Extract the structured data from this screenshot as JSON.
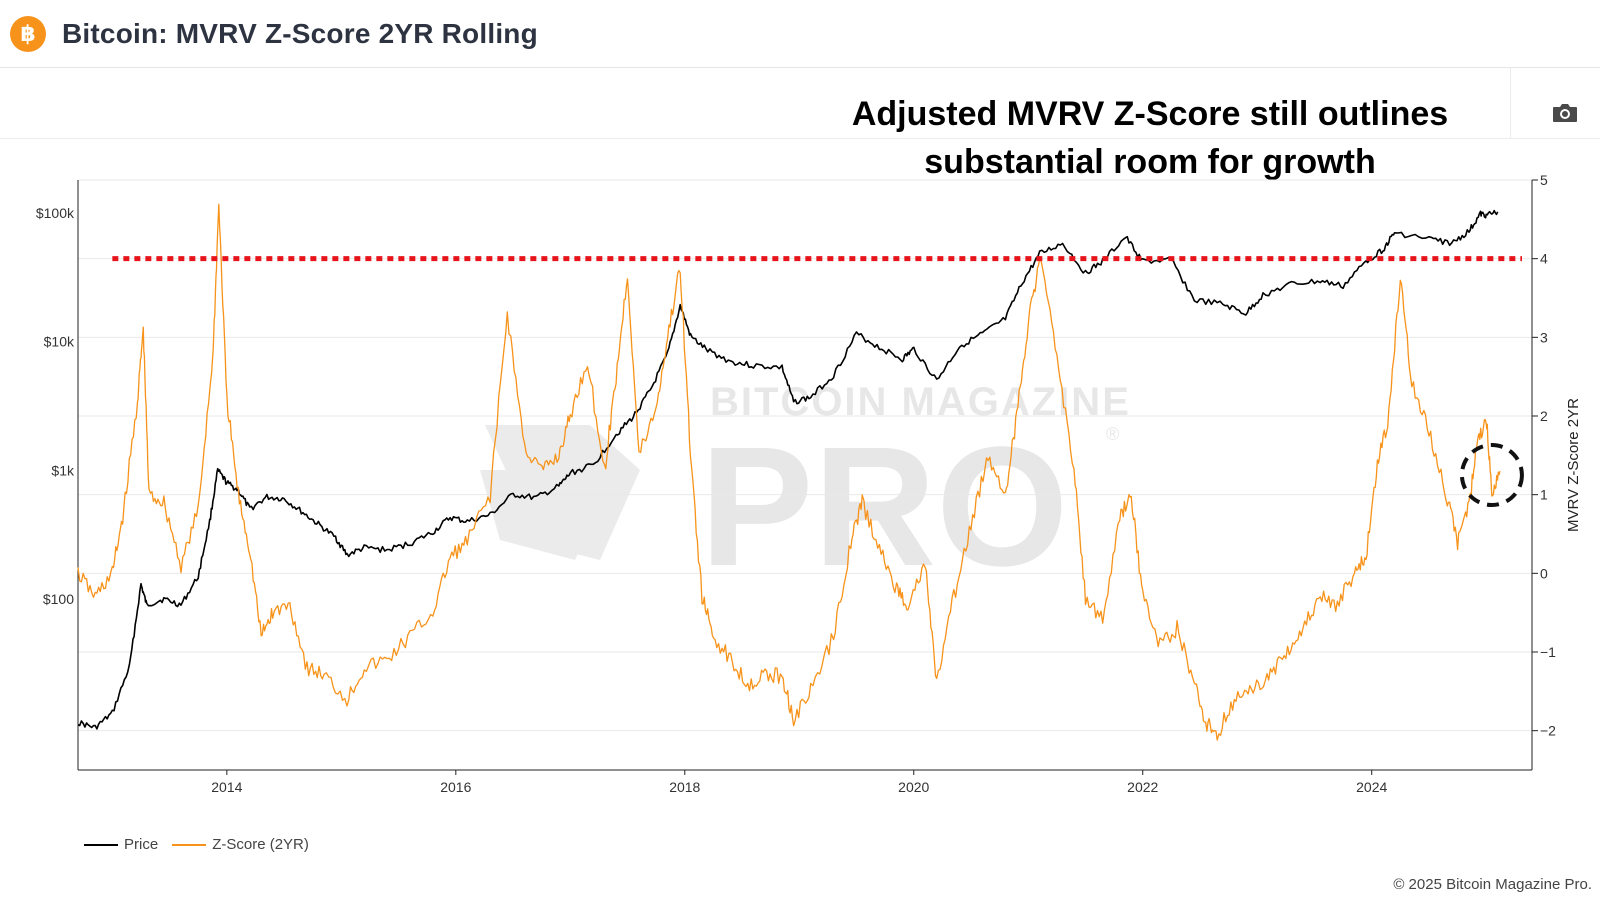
{
  "header": {
    "logo_glyph": "฿",
    "title": "Bitcoin: MVRV Z-Score 2YR Rolling"
  },
  "toolbar": {
    "camera_icon": "camera-icon"
  },
  "annotation": {
    "line1": "Adjusted MVRV Z-Score still outlines",
    "line2": "substantial room for growth"
  },
  "watermark": {
    "line1": "BITCOIN MAGAZINE",
    "line2": "PRO",
    "mark": "®"
  },
  "footer": {
    "copyright": "© 2025 Bitcoin Magazine Pro."
  },
  "colors": {
    "price": "#000000",
    "zscore": "#f7931a",
    "threshold": "#e8141b",
    "accent": "#f7931a"
  },
  "chart_data": {
    "type": "line",
    "title": "Bitcoin: MVRV Z-Score 2YR Rolling",
    "x_range": [
      2012.7,
      2025.4
    ],
    "x_ticks": [
      2014,
      2016,
      2018,
      2020,
      2022,
      2024
    ],
    "x_tick_labels": [
      "2014",
      "2016",
      "2018",
      "2020",
      "2022",
      "2024"
    ],
    "y_left": {
      "scale": "log",
      "range": [
        4.7,
        180000
      ],
      "ticks": [
        100,
        1000,
        10000,
        100000
      ],
      "tick_labels": [
        "$100",
        "$1k",
        "$10k",
        "$100k"
      ]
    },
    "y_right": {
      "label": "MVRV Z-Score 2YR",
      "range": [
        -2.5,
        5
      ],
      "ticks": [
        -2,
        -1,
        0,
        1,
        2,
        3,
        4,
        5
      ],
      "tick_labels": [
        "−2",
        "−1",
        "0",
        "1",
        "2",
        "3",
        "4",
        "5"
      ]
    },
    "threshold_line": {
      "axis": "right",
      "value": 4,
      "style": "dotted"
    },
    "highlight_circle": {
      "x": 2025.05,
      "y_right": 1.25,
      "style": "dashed"
    },
    "legend": [
      "Price",
      "Z-Score (2YR)"
    ],
    "series": [
      {
        "name": "Price",
        "axis": "left",
        "points": [
          [
            2012.7,
            11
          ],
          [
            2012.85,
            10
          ],
          [
            2013.0,
            13
          ],
          [
            2013.15,
            30
          ],
          [
            2013.25,
            130
          ],
          [
            2013.3,
            90
          ],
          [
            2013.45,
            100
          ],
          [
            2013.6,
            90
          ],
          [
            2013.75,
            150
          ],
          [
            2013.85,
            400
          ],
          [
            2013.92,
            1000
          ],
          [
            2014.0,
            800
          ],
          [
            2014.1,
            700
          ],
          [
            2014.2,
            500
          ],
          [
            2014.35,
            620
          ],
          [
            2014.5,
            600
          ],
          [
            2014.65,
            480
          ],
          [
            2014.8,
            380
          ],
          [
            2014.95,
            300
          ],
          [
            2015.05,
            220
          ],
          [
            2015.2,
            250
          ],
          [
            2015.4,
            240
          ],
          [
            2015.6,
            270
          ],
          [
            2015.8,
            330
          ],
          [
            2015.95,
            430
          ],
          [
            2016.1,
            400
          ],
          [
            2016.3,
            450
          ],
          [
            2016.5,
            650
          ],
          [
            2016.7,
            610
          ],
          [
            2016.9,
            750
          ],
          [
            2017.0,
            950
          ],
          [
            2017.2,
            1100
          ],
          [
            2017.4,
            1900
          ],
          [
            2017.55,
            2600
          ],
          [
            2017.7,
            4200
          ],
          [
            2017.85,
            8000
          ],
          [
            2017.96,
            19000
          ],
          [
            2018.05,
            11000
          ],
          [
            2018.2,
            8500
          ],
          [
            2018.4,
            7000
          ],
          [
            2018.6,
            6500
          ],
          [
            2018.85,
            6300
          ],
          [
            2018.95,
            3400
          ],
          [
            2019.1,
            3700
          ],
          [
            2019.3,
            5500
          ],
          [
            2019.5,
            11500
          ],
          [
            2019.7,
            9000
          ],
          [
            2019.9,
            7300
          ],
          [
            2020.0,
            8800
          ],
          [
            2020.2,
            5000
          ],
          [
            2020.4,
            9200
          ],
          [
            2020.6,
            11500
          ],
          [
            2020.8,
            15000
          ],
          [
            2020.95,
            29000
          ],
          [
            2021.1,
            48000
          ],
          [
            2021.3,
            58000
          ],
          [
            2021.5,
            34000
          ],
          [
            2021.65,
            42000
          ],
          [
            2021.85,
            65000
          ],
          [
            2022.0,
            42000
          ],
          [
            2022.25,
            43000
          ],
          [
            2022.45,
            21000
          ],
          [
            2022.7,
            19500
          ],
          [
            2022.9,
            16500
          ],
          [
            2023.05,
            23000
          ],
          [
            2023.3,
            28000
          ],
          [
            2023.55,
            29500
          ],
          [
            2023.75,
            27000
          ],
          [
            2023.95,
            42000
          ],
          [
            2024.1,
            52000
          ],
          [
            2024.2,
            70000
          ],
          [
            2024.5,
            63000
          ],
          [
            2024.7,
            58000
          ],
          [
            2024.85,
            72000
          ],
          [
            2024.95,
            98000
          ],
          [
            2025.0,
            96000
          ],
          [
            2025.1,
            102000
          ]
        ]
      },
      {
        "name": "Z-Score (2YR)",
        "axis": "right",
        "points": [
          [
            2012.7,
            0.0
          ],
          [
            2012.85,
            -0.3
          ],
          [
            2013.0,
            0.0
          ],
          [
            2013.1,
            0.8
          ],
          [
            2013.22,
            2.2
          ],
          [
            2013.27,
            3.1
          ],
          [
            2013.32,
            1.0
          ],
          [
            2013.45,
            0.9
          ],
          [
            2013.6,
            0.1
          ],
          [
            2013.75,
            0.8
          ],
          [
            2013.88,
            2.8
          ],
          [
            2013.93,
            4.7
          ],
          [
            2014.0,
            2.2
          ],
          [
            2014.1,
            1.0
          ],
          [
            2014.2,
            0.3
          ],
          [
            2014.3,
            -0.8
          ],
          [
            2014.4,
            -0.5
          ],
          [
            2014.55,
            -0.4
          ],
          [
            2014.7,
            -1.2
          ],
          [
            2014.85,
            -1.3
          ],
          [
            2015.05,
            -1.6
          ],
          [
            2015.2,
            -1.2
          ],
          [
            2015.4,
            -1.1
          ],
          [
            2015.6,
            -0.8
          ],
          [
            2015.8,
            -0.5
          ],
          [
            2015.95,
            0.2
          ],
          [
            2016.1,
            0.4
          ],
          [
            2016.3,
            1.0
          ],
          [
            2016.45,
            3.3
          ],
          [
            2016.6,
            1.6
          ],
          [
            2016.75,
            1.3
          ],
          [
            2016.9,
            1.5
          ],
          [
            2017.0,
            2.0
          ],
          [
            2017.15,
            2.7
          ],
          [
            2017.3,
            1.3
          ],
          [
            2017.4,
            2.5
          ],
          [
            2017.5,
            3.8
          ],
          [
            2017.6,
            1.5
          ],
          [
            2017.75,
            2.1
          ],
          [
            2017.85,
            3.0
          ],
          [
            2017.96,
            3.9
          ],
          [
            2018.05,
            1.5
          ],
          [
            2018.15,
            -0.3
          ],
          [
            2018.25,
            -0.8
          ],
          [
            2018.4,
            -1.1
          ],
          [
            2018.55,
            -1.4
          ],
          [
            2018.7,
            -1.3
          ],
          [
            2018.85,
            -1.3
          ],
          [
            2018.95,
            -1.85
          ],
          [
            2019.1,
            -1.5
          ],
          [
            2019.3,
            -0.8
          ],
          [
            2019.45,
            0.4
          ],
          [
            2019.55,
            0.9
          ],
          [
            2019.7,
            0.3
          ],
          [
            2019.85,
            -0.2
          ],
          [
            2019.95,
            -0.4
          ],
          [
            2020.1,
            0.1
          ],
          [
            2020.2,
            -1.4
          ],
          [
            2020.35,
            -0.3
          ],
          [
            2020.5,
            0.6
          ],
          [
            2020.65,
            1.5
          ],
          [
            2020.8,
            1.0
          ],
          [
            2020.9,
            2.0
          ],
          [
            2021.0,
            3.2
          ],
          [
            2021.1,
            4.0
          ],
          [
            2021.25,
            2.8
          ],
          [
            2021.4,
            1.3
          ],
          [
            2021.5,
            -0.3
          ],
          [
            2021.65,
            -0.6
          ],
          [
            2021.8,
            0.7
          ],
          [
            2021.9,
            1.0
          ],
          [
            2022.0,
            -0.3
          ],
          [
            2022.15,
            -0.9
          ],
          [
            2022.3,
            -0.7
          ],
          [
            2022.45,
            -1.4
          ],
          [
            2022.55,
            -1.9
          ],
          [
            2022.65,
            -2.05
          ],
          [
            2022.8,
            -1.6
          ],
          [
            2022.95,
            -1.5
          ],
          [
            2023.1,
            -1.3
          ],
          [
            2023.25,
            -1.0
          ],
          [
            2023.4,
            -0.7
          ],
          [
            2023.55,
            -0.3
          ],
          [
            2023.7,
            -0.4
          ],
          [
            2023.85,
            0.0
          ],
          [
            2023.95,
            0.2
          ],
          [
            2024.05,
            1.4
          ],
          [
            2024.15,
            2.0
          ],
          [
            2024.25,
            3.8
          ],
          [
            2024.35,
            2.4
          ],
          [
            2024.5,
            1.8
          ],
          [
            2024.65,
            1.0
          ],
          [
            2024.75,
            0.4
          ],
          [
            2024.85,
            0.9
          ],
          [
            2024.92,
            1.6
          ],
          [
            2025.0,
            2.0
          ],
          [
            2025.05,
            1.0
          ],
          [
            2025.12,
            1.3
          ]
        ]
      }
    ]
  }
}
